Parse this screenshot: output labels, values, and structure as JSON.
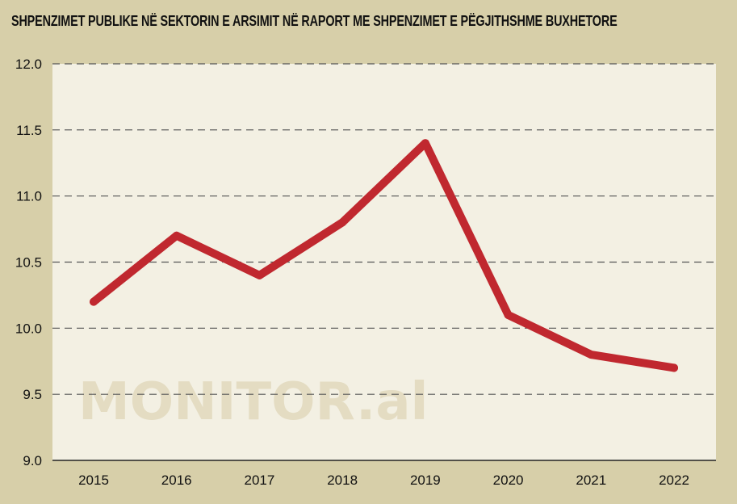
{
  "chart_data": {
    "type": "line",
    "title": "SHPENZIMET PUBLIKE NË SEKTORIN E ARSIMIT NË RAPORT ME SHPENZIMET E PËGJITHSHME BUXHETORE",
    "categories": [
      "2015",
      "2016",
      "2017",
      "2018",
      "2019",
      "2020",
      "2021",
      "2022"
    ],
    "series": [
      {
        "values": [
          10.2,
          10.7,
          10.4,
          10.8,
          11.4,
          10.1,
          9.8,
          9.7
        ]
      }
    ],
    "ylim": [
      9.0,
      12.0
    ],
    "yticks": [
      "9.0",
      "9.5",
      "10.0",
      "10.5",
      "11.0",
      "11.5",
      "12.0"
    ],
    "grid": true,
    "line_color": "#c0282f",
    "plot_background": "#f3f0e3",
    "page_background": "#d7cfa9",
    "watermark": "MONITOR.al"
  }
}
